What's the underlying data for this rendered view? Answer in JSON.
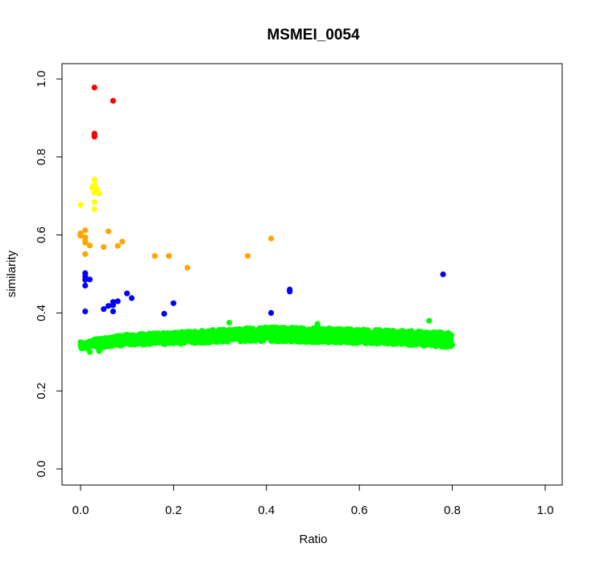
{
  "chart_data": {
    "type": "scatter",
    "title": "MSMEI_0054",
    "xlabel": "Ratio",
    "ylabel": "similarity",
    "xlim": [
      0.0,
      1.0
    ],
    "ylim": [
      0.0,
      1.0
    ],
    "x_ticks": [
      "0.0",
      "0.2",
      "0.4",
      "0.6",
      "0.8",
      "1.0"
    ],
    "y_ticks": [
      "0.0",
      "0.2",
      "0.4",
      "0.6",
      "0.8",
      "1.0"
    ],
    "grid": false,
    "legend": "none",
    "series": [
      {
        "color": "#ff0000",
        "points": [
          [
            0.03,
            0.978
          ],
          [
            0.07,
            0.944
          ],
          [
            0.03,
            0.86
          ],
          [
            0.03,
            0.856
          ],
          [
            0.03,
            0.852
          ]
        ]
      },
      {
        "color": "#ffff00",
        "points": [
          [
            0.0,
            0.677
          ],
          [
            0.025,
            0.722
          ],
          [
            0.03,
            0.742
          ],
          [
            0.03,
            0.728
          ],
          [
            0.035,
            0.718
          ],
          [
            0.03,
            0.708
          ],
          [
            0.04,
            0.706
          ],
          [
            0.03,
            0.684
          ],
          [
            0.03,
            0.666
          ]
        ]
      },
      {
        "color": "#ffa500",
        "points": [
          [
            0.0,
            0.604
          ],
          [
            0.0,
            0.598
          ],
          [
            0.01,
            0.612
          ],
          [
            0.01,
            0.594
          ],
          [
            0.01,
            0.586
          ],
          [
            0.01,
            0.58
          ],
          [
            0.02,
            0.573
          ],
          [
            0.01,
            0.551
          ],
          [
            0.06,
            0.609
          ],
          [
            0.09,
            0.583
          ],
          [
            0.08,
            0.572
          ],
          [
            0.05,
            0.569
          ],
          [
            0.16,
            0.546
          ],
          [
            0.19,
            0.546
          ],
          [
            0.23,
            0.516
          ],
          [
            0.36,
            0.546
          ],
          [
            0.41,
            0.591
          ]
        ]
      },
      {
        "color": "#0000ff",
        "points": [
          [
            0.01,
            0.502
          ],
          [
            0.01,
            0.494
          ],
          [
            0.01,
            0.485
          ],
          [
            0.02,
            0.486
          ],
          [
            0.01,
            0.47
          ],
          [
            0.01,
            0.404
          ],
          [
            0.05,
            0.41
          ],
          [
            0.06,
            0.418
          ],
          [
            0.07,
            0.428
          ],
          [
            0.07,
            0.42
          ],
          [
            0.07,
            0.404
          ],
          [
            0.08,
            0.43
          ],
          [
            0.1,
            0.45
          ],
          [
            0.11,
            0.438
          ],
          [
            0.18,
            0.398
          ],
          [
            0.2,
            0.425
          ],
          [
            0.41,
            0.4
          ],
          [
            0.45,
            0.46
          ],
          [
            0.45,
            0.455
          ],
          [
            0.78,
            0.499
          ]
        ]
      },
      {
        "color": "#00ff00",
        "band": {
          "x_start": 0.0,
          "x_end": 0.8,
          "y_low": [
            [
              0.0,
              0.308
            ],
            [
              0.05,
              0.312
            ],
            [
              0.1,
              0.318
            ],
            [
              0.2,
              0.32
            ],
            [
              0.3,
              0.325
            ],
            [
              0.4,
              0.328
            ],
            [
              0.5,
              0.325
            ],
            [
              0.6,
              0.322
            ],
            [
              0.7,
              0.318
            ],
            [
              0.8,
              0.312
            ]
          ],
          "y_high": [
            [
              0.0,
              0.325
            ],
            [
              0.05,
              0.336
            ],
            [
              0.1,
              0.345
            ],
            [
              0.2,
              0.35
            ],
            [
              0.3,
              0.358
            ],
            [
              0.4,
              0.363
            ],
            [
              0.5,
              0.362
            ],
            [
              0.6,
              0.358
            ],
            [
              0.7,
              0.354
            ],
            [
              0.8,
              0.35
            ]
          ]
        },
        "points": [
          [
            0.0,
            0.325
          ],
          [
            0.03,
            0.332
          ],
          [
            0.32,
            0.375
          ],
          [
            0.51,
            0.372
          ],
          [
            0.75,
            0.38
          ],
          [
            0.02,
            0.3
          ],
          [
            0.04,
            0.302
          ]
        ]
      }
    ]
  }
}
